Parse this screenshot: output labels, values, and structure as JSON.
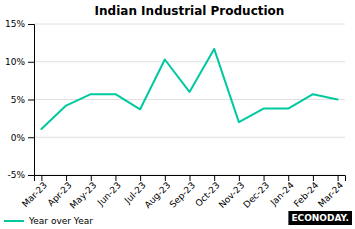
{
  "chart_data": {
    "type": "line",
    "title": "Indian Industrial Production",
    "categories": [
      "Mar-23",
      "Apr-23",
      "May-23",
      "Jun-23",
      "Jul-23",
      "Aug-23",
      "Sep-23",
      "Oct-23",
      "Nov-23",
      "Dec-23",
      "Jan-24",
      "Feb-24",
      "Mar-24"
    ],
    "series": [
      {
        "name": "Year over Year",
        "color": "#00c9a0",
        "values": [
          1.1,
          4.2,
          5.7,
          5.7,
          3.7,
          10.3,
          6.0,
          11.7,
          2.0,
          3.8,
          3.8,
          5.7,
          5.0
        ]
      }
    ],
    "ylim": [
      -5,
      15
    ],
    "yticks": [
      {
        "value": -5,
        "label": "-5%"
      },
      {
        "value": 0,
        "label": "0%"
      },
      {
        "value": 5,
        "label": "5%"
      },
      {
        "value": 10,
        "label": "10%"
      },
      {
        "value": 15,
        "label": "15%"
      }
    ],
    "grid": true,
    "legend": "bottom-left",
    "annotations": [
      "ECONODAY."
    ]
  }
}
